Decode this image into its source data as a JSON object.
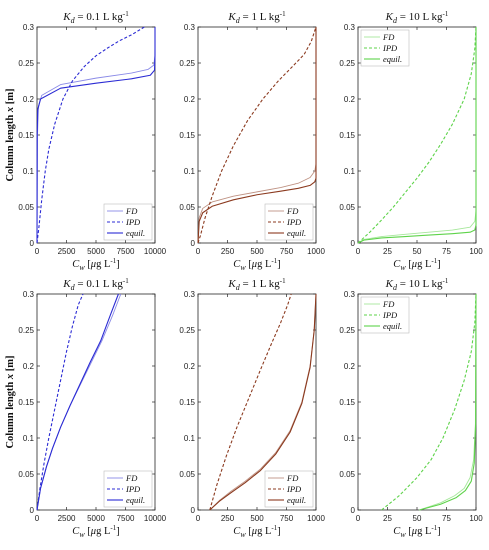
{
  "figure": {
    "colors": {
      "blue": "#2b2bd4",
      "brown": "#8b3a1f",
      "green": "#5ed34a"
    },
    "ylabel_prefix": "Column length ",
    "ylabel_var": "x",
    "ylabel_suffix": " [m]",
    "xlabel_var": "C",
    "xlabel_sub": "w",
    "xlabel_unit_pre": " [",
    "xlabel_mu": "μ",
    "xlabel_unit_mid": "g L",
    "xlabel_unit_exp": "-1",
    "xlabel_unit_post": "]",
    "title_var": "K",
    "title_sub": "d"
  },
  "chart_data": [
    {
      "type": "line",
      "title_value": " = 0.1 L kg",
      "title_exp": "-1",
      "xlim": [
        0,
        10000
      ],
      "ylim": [
        0,
        0.3
      ],
      "xticks": [
        "0",
        "2500",
        "5000",
        "7500",
        "10000"
      ],
      "yticks": [
        "0",
        "0.05",
        "0.1",
        "0.15",
        "0.2",
        "0.25",
        "0.3"
      ],
      "color": "#2b2bd4",
      "series": [
        {
          "name": "FD",
          "style": "thin",
          "x": [
            0,
            40,
            120,
            400,
            2000,
            5000,
            8000,
            9400,
            9900,
            9990,
            10000,
            10000
          ],
          "y": [
            0,
            0.15,
            0.19,
            0.205,
            0.22,
            0.229,
            0.236,
            0.241,
            0.247,
            0.26,
            0.28,
            0.3
          ]
        },
        {
          "name": "IPD",
          "style": "dashed",
          "x": [
            0,
            150,
            400,
            700,
            1000,
            1500,
            2200,
            3000,
            4000,
            5000,
            6000,
            7000,
            8000,
            9100
          ],
          "y": [
            0,
            0.02,
            0.06,
            0.1,
            0.13,
            0.165,
            0.2,
            0.225,
            0.245,
            0.26,
            0.271,
            0.281,
            0.289,
            0.3
          ]
        },
        {
          "name": "equil.",
          "style": "solid",
          "x": [
            0,
            15,
            60,
            300,
            2000,
            5000,
            8000,
            9600,
            9960,
            10000,
            10000
          ],
          "y": [
            0,
            0.15,
            0.185,
            0.2,
            0.215,
            0.222,
            0.228,
            0.233,
            0.24,
            0.26,
            0.3
          ]
        }
      ],
      "legend": [
        "FD",
        "IPD",
        "equil."
      ],
      "legend_position": "bottom-right"
    },
    {
      "type": "line",
      "title_value": " = 1 L kg",
      "title_exp": "-1",
      "xlim": [
        0,
        1000
      ],
      "ylim": [
        0,
        0.3
      ],
      "xticks": [
        "0",
        "250",
        "500",
        "750",
        "1000"
      ],
      "yticks": [
        "0",
        "0.05",
        "0.1",
        "0.15",
        "0.2",
        "0.25",
        "0.3"
      ],
      "color": "#8b3a1f",
      "series": [
        {
          "name": "FD",
          "style": "thin",
          "x": [
            0,
            10,
            40,
            120,
            300,
            500,
            700,
            850,
            950,
            990,
            1000,
            1000
          ],
          "y": [
            0,
            0.035,
            0.048,
            0.057,
            0.065,
            0.071,
            0.077,
            0.083,
            0.091,
            0.1,
            0.11,
            0.3
          ]
        },
        {
          "name": "IPD",
          "style": "dashed",
          "x": [
            0,
            20,
            60,
            120,
            200,
            300,
            420,
            550,
            680,
            800,
            900,
            960,
            1000
          ],
          "y": [
            0,
            0.01,
            0.035,
            0.065,
            0.1,
            0.135,
            0.17,
            0.2,
            0.225,
            0.245,
            0.262,
            0.28,
            0.3
          ]
        },
        {
          "name": "equil.",
          "style": "solid",
          "x": [
            0,
            10,
            40,
            120,
            300,
            500,
            700,
            850,
            950,
            990,
            1000,
            1000
          ],
          "y": [
            0,
            0.03,
            0.042,
            0.051,
            0.06,
            0.067,
            0.072,
            0.076,
            0.08,
            0.085,
            0.09,
            0.3
          ]
        }
      ],
      "legend": [
        "FD",
        "IPD",
        "equil."
      ],
      "legend_position": "bottom-right"
    },
    {
      "type": "line",
      "title_value": " = 10 L kg",
      "title_exp": "-1",
      "xlim": [
        0,
        100
      ],
      "ylim": [
        0,
        0.3
      ],
      "xticks": [
        "0",
        "25",
        "50",
        "75",
        "100"
      ],
      "yticks": [
        "0",
        "0.05",
        "0.1",
        "0.15",
        "0.2",
        "0.25",
        "0.3"
      ],
      "color": "#5ed34a",
      "series": [
        {
          "name": "FD",
          "style": "thin",
          "x": [
            0,
            5,
            20,
            40,
            60,
            80,
            95,
            99,
            100,
            100
          ],
          "y": [
            0,
            0.005,
            0.009,
            0.012,
            0.015,
            0.018,
            0.022,
            0.03,
            0.045,
            0.3
          ]
        },
        {
          "name": "IPD",
          "style": "dashed",
          "x": [
            0,
            10,
            20,
            30,
            40,
            50,
            60,
            70,
            80,
            90,
            96,
            99,
            100
          ],
          "y": [
            0,
            0.015,
            0.032,
            0.05,
            0.07,
            0.09,
            0.112,
            0.137,
            0.165,
            0.2,
            0.235,
            0.27,
            0.3
          ]
        },
        {
          "name": "equil.",
          "style": "solid",
          "x": [
            0,
            5,
            20,
            40,
            60,
            80,
            95,
            99,
            100,
            100
          ],
          "y": [
            0,
            0.004,
            0.007,
            0.009,
            0.011,
            0.013,
            0.015,
            0.018,
            0.025,
            0.3
          ]
        }
      ],
      "legend": [
        "FD",
        "IPD",
        "equil."
      ],
      "legend_position": "top-left"
    },
    {
      "type": "line",
      "title_value": " = 0.1 L kg",
      "title_exp": "-1",
      "xlim": [
        0,
        10000
      ],
      "ylim": [
        0,
        0.3
      ],
      "xticks": [
        "0",
        "2500",
        "5000",
        "7500",
        "10000"
      ],
      "yticks": [
        "0",
        "0.05",
        "0.1",
        "0.15",
        "0.2",
        "0.25",
        "0.3"
      ],
      "color": "#2b2bd4",
      "series": [
        {
          "name": "FD",
          "style": "thin",
          "x": [
            0,
            300,
            800,
            1300,
            2000,
            2800,
            3700,
            4600,
            5500,
            6400,
            7100
          ],
          "y": [
            0,
            0.03,
            0.06,
            0.085,
            0.115,
            0.145,
            0.175,
            0.205,
            0.235,
            0.27,
            0.3
          ]
        },
        {
          "name": "IPD",
          "style": "dashed",
          "x": [
            0,
            250,
            600,
            1000,
            1500,
            2000,
            2500,
            3000,
            3500,
            3900
          ],
          "y": [
            0,
            0.03,
            0.065,
            0.1,
            0.14,
            0.18,
            0.22,
            0.255,
            0.285,
            0.3
          ]
        },
        {
          "name": "equil.",
          "style": "solid",
          "x": [
            0,
            300,
            800,
            1300,
            2000,
            2800,
            3650,
            4500,
            5400,
            6200,
            6900
          ],
          "y": [
            0,
            0.03,
            0.06,
            0.085,
            0.115,
            0.145,
            0.175,
            0.205,
            0.235,
            0.27,
            0.3
          ]
        }
      ],
      "legend": [
        "FD",
        "IPD",
        "equil."
      ],
      "legend_position": "bottom-right"
    },
    {
      "type": "line",
      "title_value": " = 1 L kg",
      "title_exp": "-1",
      "xlim": [
        0,
        1000
      ],
      "ylim": [
        0,
        0.3
      ],
      "xticks": [
        "0",
        "250",
        "500",
        "750",
        "1000"
      ],
      "yticks": [
        "0",
        "0.05",
        "0.1",
        "0.15",
        "0.2",
        "0.25",
        "0.3"
      ],
      "color": "#8b3a1f",
      "series": [
        {
          "name": "FD",
          "style": "thin",
          "x": [
            100,
            180,
            280,
            400,
            530,
            660,
            780,
            880,
            950,
            985,
            1000
          ],
          "y": [
            0,
            0.013,
            0.026,
            0.04,
            0.057,
            0.08,
            0.11,
            0.15,
            0.2,
            0.25,
            0.3
          ]
        },
        {
          "name": "IPD",
          "style": "dashed",
          "x": [
            100,
            160,
            240,
            330,
            430,
            530,
            620,
            700,
            760,
            790
          ],
          "y": [
            0,
            0.035,
            0.075,
            0.115,
            0.155,
            0.195,
            0.23,
            0.26,
            0.285,
            0.3
          ]
        },
        {
          "name": "equil.",
          "style": "solid",
          "x": [
            100,
            180,
            280,
            400,
            530,
            660,
            780,
            880,
            950,
            985,
            1000
          ],
          "y": [
            0,
            0.012,
            0.024,
            0.038,
            0.055,
            0.078,
            0.108,
            0.148,
            0.198,
            0.25,
            0.3
          ]
        }
      ],
      "legend": [
        "FD",
        "IPD",
        "equil."
      ],
      "legend_position": "bottom-right"
    },
    {
      "type": "line",
      "title_value": " = 10 L kg",
      "title_exp": "-1",
      "xlim": [
        0,
        100
      ],
      "ylim": [
        0,
        0.3
      ],
      "xticks": [
        "0",
        "25",
        "50",
        "75",
        "100"
      ],
      "yticks": [
        "0",
        "0.05",
        "0.1",
        "0.15",
        "0.2",
        "0.25",
        "0.3"
      ],
      "color": "#5ed34a",
      "series": [
        {
          "name": "FD",
          "style": "thin",
          "x": [
            52,
            70,
            82,
            90,
            95,
            98,
            99.5,
            100
          ],
          "y": [
            0,
            0.01,
            0.02,
            0.03,
            0.045,
            0.07,
            0.12,
            0.3
          ]
        },
        {
          "name": "IPD",
          "style": "dashed",
          "x": [
            20,
            35,
            50,
            62,
            72,
            82,
            90,
            96,
            99,
            100
          ],
          "y": [
            0,
            0.02,
            0.045,
            0.07,
            0.1,
            0.14,
            0.18,
            0.22,
            0.26,
            0.3
          ]
        },
        {
          "name": "equil.",
          "style": "solid",
          "x": [
            52,
            70,
            83,
            91,
            96,
            98.5,
            99.7,
            100
          ],
          "y": [
            0,
            0.008,
            0.017,
            0.027,
            0.04,
            0.065,
            0.12,
            0.3
          ]
        }
      ],
      "legend": [
        "FD",
        "IPD",
        "equil."
      ],
      "legend_position": "top-left"
    }
  ]
}
